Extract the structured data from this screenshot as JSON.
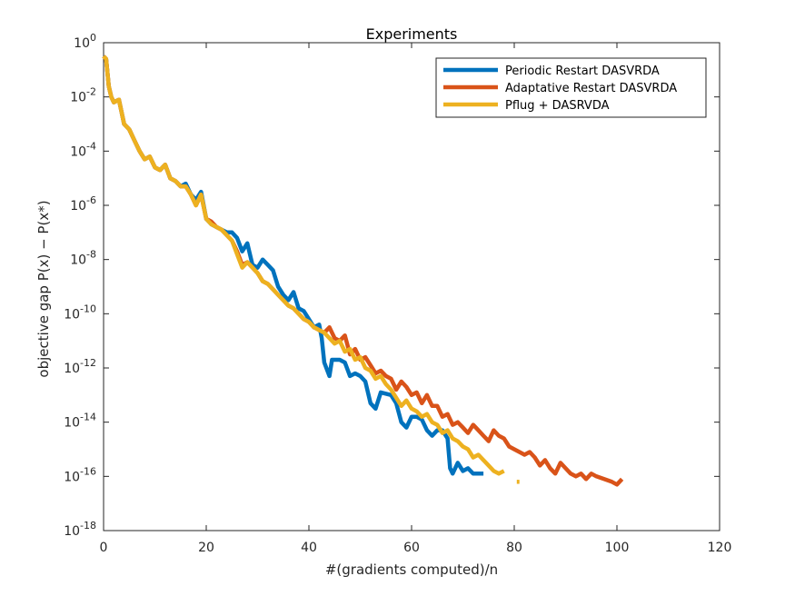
{
  "chart_data": {
    "type": "line",
    "title": "Experiments",
    "xlabel": "#(gradients computed)/n",
    "ylabel": "objective gap P(x) − P(x*)",
    "xlim": [
      0,
      120
    ],
    "ylim_exp": [
      -18,
      0
    ],
    "yscale": "log",
    "x_ticks": [
      "0",
      "20",
      "40",
      "60",
      "80",
      "100",
      "120"
    ],
    "y_tick_base": "10",
    "y_tick_exponents": [
      "0",
      "-2",
      "-4",
      "-6",
      "-8",
      "-10",
      "-12",
      "-14",
      "-16",
      "-18"
    ],
    "grid": false,
    "legend_position": "top-right",
    "series": [
      {
        "name": "Periodic Restart DASVRDA",
        "color": "#0072BD",
        "points": [
          [
            0,
            -0.5
          ],
          [
            0.5,
            -0.6
          ],
          [
            1,
            -1.6
          ],
          [
            1.5,
            -2
          ],
          [
            2,
            -2.2
          ],
          [
            3,
            -2.1
          ],
          [
            4,
            -3
          ],
          [
            5,
            -3.2
          ],
          [
            6,
            -3.6
          ],
          [
            7,
            -4
          ],
          [
            8,
            -4.3
          ],
          [
            9,
            -4.2
          ],
          [
            10,
            -4.6
          ],
          [
            11,
            -4.7
          ],
          [
            12,
            -4.5
          ],
          [
            13,
            -5
          ],
          [
            14,
            -5.1
          ],
          [
            15,
            -5.3
          ],
          [
            16,
            -5.2
          ],
          [
            17,
            -5.6
          ],
          [
            18,
            -5.8
          ],
          [
            19,
            -5.5
          ],
          [
            20,
            -6.5
          ],
          [
            21,
            -6.7
          ],
          [
            22,
            -6.8
          ],
          [
            23,
            -6.9
          ],
          [
            24,
            -7
          ],
          [
            25,
            -7
          ],
          [
            26,
            -7.2
          ],
          [
            27,
            -7.7
          ],
          [
            28,
            -7.4
          ],
          [
            29,
            -8.2
          ],
          [
            30,
            -8.3
          ],
          [
            31,
            -8
          ],
          [
            32,
            -8.2
          ],
          [
            33,
            -8.4
          ],
          [
            34,
            -9
          ],
          [
            35,
            -9.3
          ],
          [
            36,
            -9.5
          ],
          [
            37,
            -9.2
          ],
          [
            38,
            -9.8
          ],
          [
            39,
            -9.9
          ],
          [
            40,
            -10.2
          ],
          [
            41,
            -10.5
          ],
          [
            42,
            -10.4
          ],
          [
            42.5,
            -10.9
          ],
          [
            43,
            -11.8
          ],
          [
            44,
            -12.3
          ],
          [
            44.5,
            -11.7
          ],
          [
            46,
            -11.7
          ],
          [
            47,
            -11.8
          ],
          [
            48,
            -12.3
          ],
          [
            49,
            -12.2
          ],
          [
            50,
            -12.3
          ],
          [
            51,
            -12.5
          ],
          [
            52,
            -13.3
          ],
          [
            53,
            -13.5
          ],
          [
            54,
            -12.9
          ],
          [
            56,
            -13
          ],
          [
            57,
            -13.3
          ],
          [
            58,
            -14
          ],
          [
            59,
            -14.2
          ],
          [
            60,
            -13.8
          ],
          [
            61,
            -13.8
          ],
          [
            62,
            -13.9
          ],
          [
            63,
            -14.3
          ],
          [
            64,
            -14.5
          ],
          [
            65,
            -14.3
          ],
          [
            66,
            -14.3
          ],
          [
            67,
            -14.6
          ],
          [
            67.5,
            -15.7
          ],
          [
            68,
            -15.9
          ],
          [
            69,
            -15.5
          ],
          [
            70,
            -15.8
          ],
          [
            71,
            -15.7
          ],
          [
            72,
            -15.9
          ],
          [
            73,
            -15.9
          ],
          [
            74,
            -15.9
          ]
        ]
      },
      {
        "name": "Adaptative Restart DASVRDA",
        "color": "#D95319",
        "points": [
          [
            0,
            -0.5
          ],
          [
            0.5,
            -0.6
          ],
          [
            1,
            -1.6
          ],
          [
            1.5,
            -2
          ],
          [
            2,
            -2.2
          ],
          [
            3,
            -2.1
          ],
          [
            4,
            -3
          ],
          [
            5,
            -3.2
          ],
          [
            6,
            -3.6
          ],
          [
            7,
            -4
          ],
          [
            8,
            -4.3
          ],
          [
            9,
            -4.2
          ],
          [
            10,
            -4.6
          ],
          [
            11,
            -4.7
          ],
          [
            12,
            -4.5
          ],
          [
            13,
            -5
          ],
          [
            14,
            -5.1
          ],
          [
            15,
            -5.3
          ],
          [
            16,
            -5.3
          ],
          [
            17,
            -5.6
          ],
          [
            18,
            -6
          ],
          [
            19,
            -5.6
          ],
          [
            20,
            -6.5
          ],
          [
            21,
            -6.6
          ],
          [
            22,
            -6.8
          ],
          [
            23,
            -6.9
          ],
          [
            24,
            -7.1
          ],
          [
            25,
            -7.3
          ],
          [
            26,
            -7.7
          ],
          [
            27,
            -8.2
          ],
          [
            28,
            -8.1
          ],
          [
            29,
            -8.3
          ],
          [
            30,
            -8.5
          ],
          [
            31,
            -8.8
          ],
          [
            32,
            -8.9
          ],
          [
            33,
            -9.1
          ],
          [
            34,
            -9.3
          ],
          [
            35,
            -9.5
          ],
          [
            36,
            -9.7
          ],
          [
            37,
            -9.8
          ],
          [
            38,
            -10
          ],
          [
            39,
            -10.2
          ],
          [
            40,
            -10.3
          ],
          [
            41,
            -10.5
          ],
          [
            42,
            -10.6
          ],
          [
            43,
            -10.7
          ],
          [
            44,
            -10.5
          ],
          [
            45,
            -10.9
          ],
          [
            46,
            -11
          ],
          [
            47,
            -10.8
          ],
          [
            48,
            -11.5
          ],
          [
            49,
            -11.3
          ],
          [
            50,
            -11.7
          ],
          [
            51,
            -11.6
          ],
          [
            52,
            -11.9
          ],
          [
            53,
            -12.2
          ],
          [
            54,
            -12.1
          ],
          [
            55,
            -12.3
          ],
          [
            56,
            -12.4
          ],
          [
            57,
            -12.8
          ],
          [
            58,
            -12.5
          ],
          [
            59,
            -12.7
          ],
          [
            60,
            -13
          ],
          [
            61,
            -12.9
          ],
          [
            62,
            -13.3
          ],
          [
            63,
            -13
          ],
          [
            64,
            -13.4
          ],
          [
            65,
            -13.4
          ],
          [
            66,
            -13.8
          ],
          [
            67,
            -13.7
          ],
          [
            68,
            -14.1
          ],
          [
            69,
            -14
          ],
          [
            70,
            -14.2
          ],
          [
            71,
            -14.4
          ],
          [
            72,
            -14.1
          ],
          [
            73,
            -14.3
          ],
          [
            74,
            -14.5
          ],
          [
            75,
            -14.7
          ],
          [
            76,
            -14.3
          ],
          [
            77,
            -14.5
          ],
          [
            78,
            -14.6
          ],
          [
            79,
            -14.9
          ],
          [
            80,
            -15
          ],
          [
            81,
            -15.1
          ],
          [
            82,
            -15.2
          ],
          [
            83,
            -15.1
          ],
          [
            84,
            -15.3
          ],
          [
            85,
            -15.6
          ],
          [
            86,
            -15.4
          ],
          [
            87,
            -15.7
          ],
          [
            88,
            -15.9
          ],
          [
            89,
            -15.5
          ],
          [
            90,
            -15.7
          ],
          [
            91,
            -15.9
          ],
          [
            92,
            -16
          ],
          [
            93,
            -15.9
          ],
          [
            94,
            -16.1
          ],
          [
            95,
            -15.9
          ],
          [
            96,
            -16
          ],
          [
            99,
            -16.2
          ],
          [
            100,
            -16.3
          ],
          [
            101,
            -16.1
          ]
        ]
      },
      {
        "name": "Pflug + DASRVDA",
        "color": "#EDB120",
        "points": [
          [
            0,
            -0.5
          ],
          [
            0.5,
            -0.6
          ],
          [
            1,
            -1.6
          ],
          [
            1.5,
            -2
          ],
          [
            2,
            -2.2
          ],
          [
            3,
            -2.1
          ],
          [
            4,
            -3
          ],
          [
            5,
            -3.2
          ],
          [
            6,
            -3.6
          ],
          [
            7,
            -4
          ],
          [
            8,
            -4.3
          ],
          [
            9,
            -4.2
          ],
          [
            10,
            -4.6
          ],
          [
            11,
            -4.7
          ],
          [
            12,
            -4.5
          ],
          [
            13,
            -5
          ],
          [
            14,
            -5.1
          ],
          [
            15,
            -5.3
          ],
          [
            16,
            -5.3
          ],
          [
            17,
            -5.6
          ],
          [
            18,
            -6
          ],
          [
            19,
            -5.6
          ],
          [
            20,
            -6.5
          ],
          [
            21,
            -6.7
          ],
          [
            22,
            -6.8
          ],
          [
            23,
            -6.9
          ],
          [
            24,
            -7.1
          ],
          [
            25,
            -7.3
          ],
          [
            26,
            -7.8
          ],
          [
            27,
            -8.3
          ],
          [
            28,
            -8.1
          ],
          [
            29,
            -8.3
          ],
          [
            30,
            -8.5
          ],
          [
            31,
            -8.8
          ],
          [
            32,
            -8.9
          ],
          [
            33,
            -9.1
          ],
          [
            34,
            -9.3
          ],
          [
            35,
            -9.5
          ],
          [
            36,
            -9.7
          ],
          [
            37,
            -9.8
          ],
          [
            38,
            -10
          ],
          [
            39,
            -10.2
          ],
          [
            40,
            -10.3
          ],
          [
            41,
            -10.5
          ],
          [
            42,
            -10.6
          ],
          [
            43,
            -10.7
          ],
          [
            44,
            -10.9
          ],
          [
            45,
            -11.1
          ],
          [
            46,
            -11
          ],
          [
            47,
            -11.4
          ],
          [
            48,
            -11.3
          ],
          [
            49,
            -11.7
          ],
          [
            50,
            -11.6
          ],
          [
            51,
            -12
          ],
          [
            52,
            -12.1
          ],
          [
            53,
            -12.4
          ],
          [
            54,
            -12.3
          ],
          [
            55,
            -12.6
          ],
          [
            56,
            -12.8
          ],
          [
            57,
            -13.1
          ],
          [
            58,
            -13.4
          ],
          [
            59,
            -13.2
          ],
          [
            60,
            -13.5
          ],
          [
            61,
            -13.6
          ],
          [
            62,
            -13.8
          ],
          [
            63,
            -13.7
          ],
          [
            64,
            -14
          ],
          [
            65,
            -14.1
          ],
          [
            66,
            -14.4
          ],
          [
            67,
            -14.3
          ],
          [
            68,
            -14.6
          ],
          [
            69,
            -14.7
          ],
          [
            70,
            -14.9
          ],
          [
            71,
            -15
          ],
          [
            72,
            -15.3
          ],
          [
            73,
            -15.2
          ],
          [
            74,
            -15.4
          ],
          [
            75,
            -15.6
          ],
          [
            76,
            -15.8
          ],
          [
            77,
            -15.9
          ],
          [
            78,
            -15.8
          ]
        ]
      },
      {
        "name": "",
        "color": "#EDB120",
        "points": [
          [
            80.5,
            -16.2
          ],
          [
            81,
            -16.2
          ]
        ]
      }
    ]
  }
}
